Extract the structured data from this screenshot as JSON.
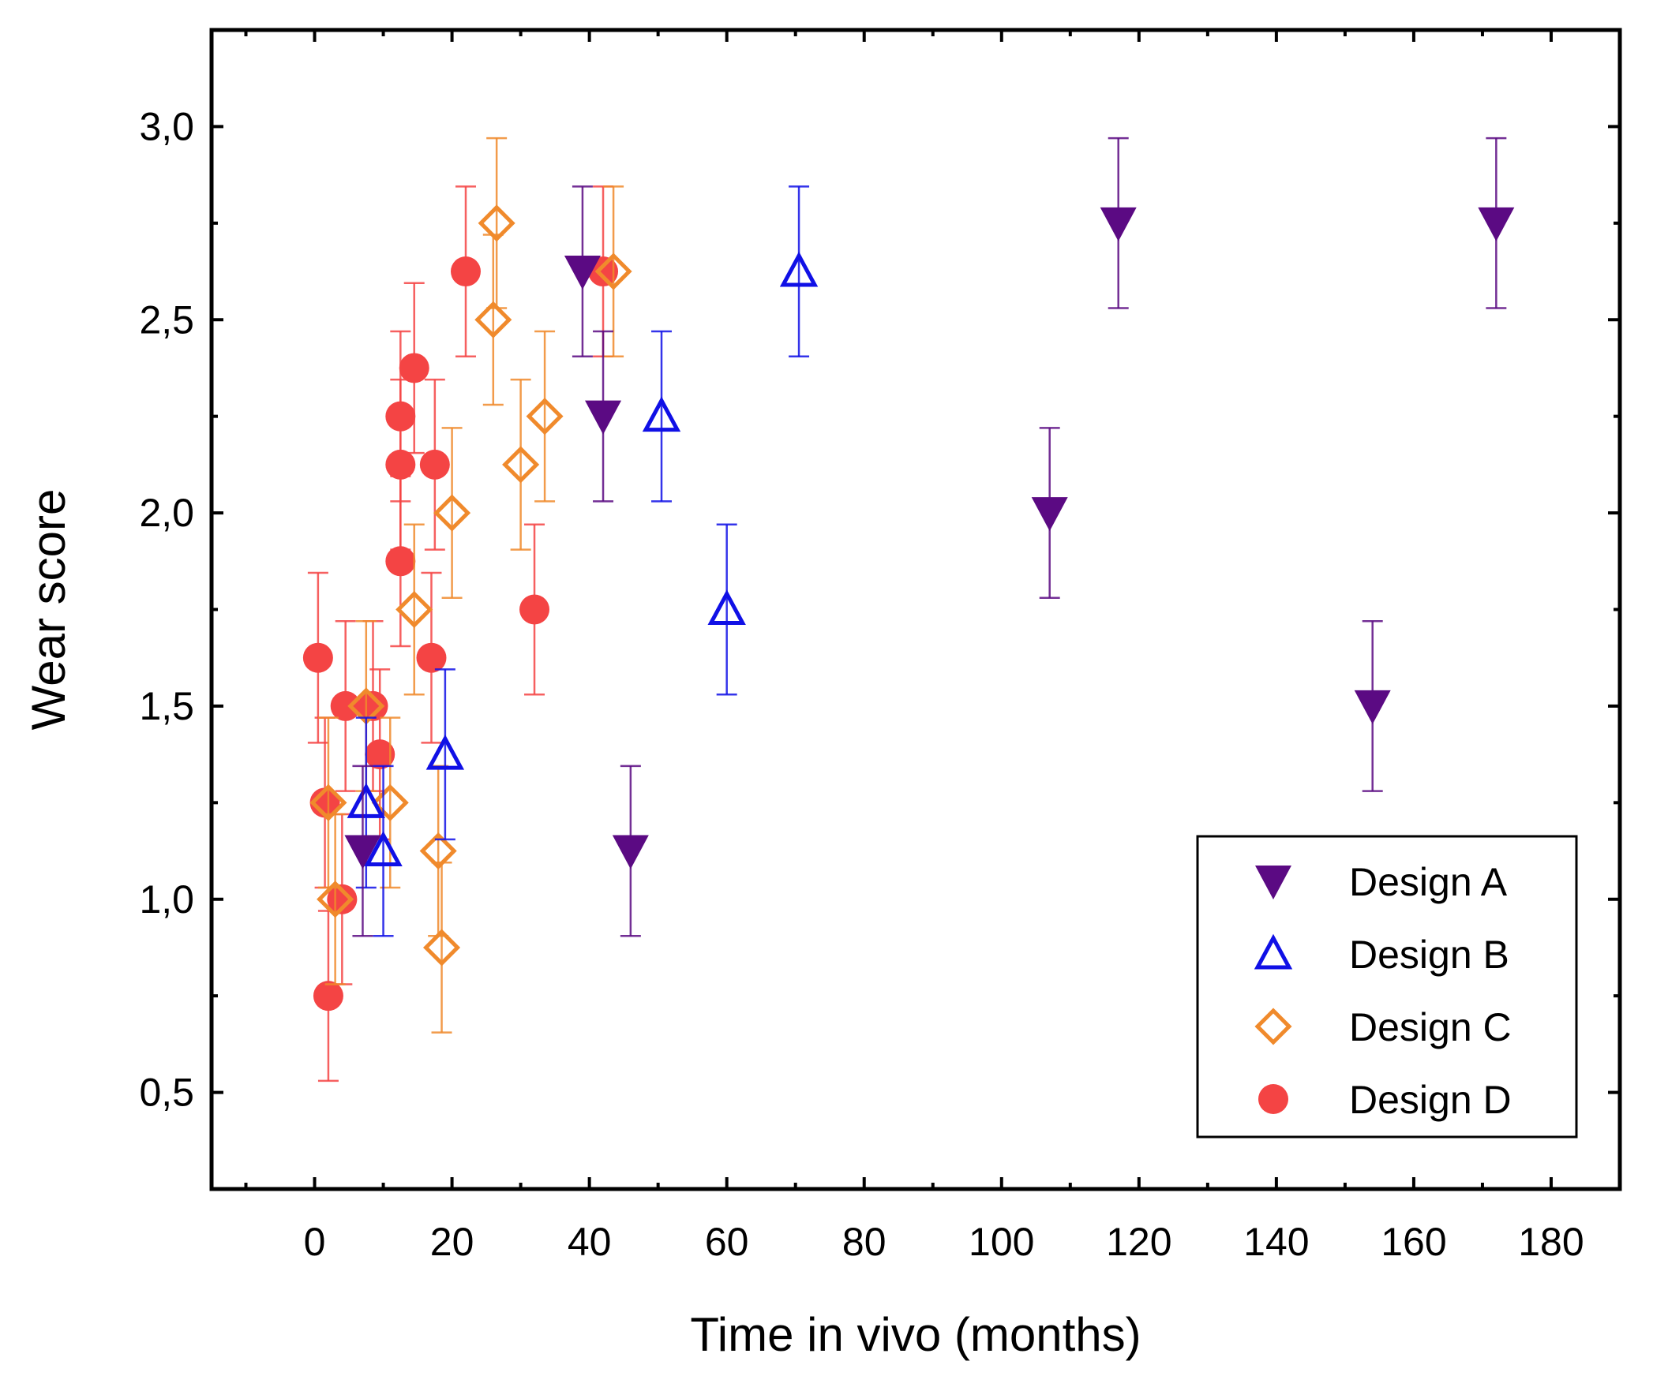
{
  "chart_data": {
    "type": "scatter",
    "title": "",
    "xlabel": "Time in vivo (months)",
    "ylabel": "Wear score",
    "xlim": [
      -15,
      190
    ],
    "ylim": [
      0.25,
      3.25
    ],
    "xticks": [
      0,
      20,
      40,
      60,
      80,
      100,
      120,
      140,
      160,
      180
    ],
    "xtick_labels": [
      "0",
      "20",
      "40",
      "60",
      "80",
      "100",
      "120",
      "140",
      "160",
      "180"
    ],
    "yticks": [
      0.5,
      1.0,
      1.5,
      2.0,
      2.5,
      3.0
    ],
    "ytick_labels": [
      "0,5",
      "1,0",
      "1,5",
      "2,0",
      "2,5",
      "3,0"
    ],
    "grid": false,
    "legend_position": "bottom-right",
    "series": [
      {
        "name": "Design A",
        "marker": "triangle-down-filled",
        "color": "#5B0A83",
        "points": [
          {
            "x": 7,
            "y": 1.125,
            "err": 0.22
          },
          {
            "x": 39,
            "y": 2.625,
            "err": 0.22
          },
          {
            "x": 42,
            "y": 2.25,
            "err": 0.22
          },
          {
            "x": 46,
            "y": 1.125,
            "err": 0.22
          },
          {
            "x": 107,
            "y": 2.0,
            "err": 0.22
          },
          {
            "x": 117,
            "y": 2.75,
            "err": 0.22
          },
          {
            "x": 154,
            "y": 1.5,
            "err": 0.22
          },
          {
            "x": 172,
            "y": 2.75,
            "err": 0.22
          }
        ]
      },
      {
        "name": "Design B",
        "marker": "triangle-up-open",
        "color": "#1010E6",
        "points": [
          {
            "x": 7.5,
            "y": 1.25,
            "err": 0.22
          },
          {
            "x": 10,
            "y": 1.125,
            "err": 0.22
          },
          {
            "x": 19,
            "y": 1.375,
            "err": 0.22
          },
          {
            "x": 50.5,
            "y": 2.25,
            "err": 0.22
          },
          {
            "x": 60,
            "y": 1.75,
            "err": 0.22
          },
          {
            "x": 70.5,
            "y": 2.625,
            "err": 0.22
          }
        ]
      },
      {
        "name": "Design C",
        "marker": "diamond-open",
        "color": "#F08A2C",
        "points": [
          {
            "x": 2,
            "y": 1.25,
            "err": 0.22
          },
          {
            "x": 3,
            "y": 1.0,
            "err": 0.22
          },
          {
            "x": 7.5,
            "y": 1.5,
            "err": 0.22
          },
          {
            "x": 11,
            "y": 1.25,
            "err": 0.22
          },
          {
            "x": 14.5,
            "y": 1.75,
            "err": 0.22
          },
          {
            "x": 18,
            "y": 1.125,
            "err": 0.22
          },
          {
            "x": 18.5,
            "y": 0.875,
            "err": 0.22
          },
          {
            "x": 20,
            "y": 2.0,
            "err": 0.22
          },
          {
            "x": 26,
            "y": 2.5,
            "err": 0.22
          },
          {
            "x": 26.5,
            "y": 2.75,
            "err": 0.22
          },
          {
            "x": 30,
            "y": 2.125,
            "err": 0.22
          },
          {
            "x": 33.5,
            "y": 2.25,
            "err": 0.22
          },
          {
            "x": 43.5,
            "y": 2.625,
            "err": 0.22
          }
        ]
      },
      {
        "name": "Design D",
        "marker": "circle-filled",
        "color": "#F44444",
        "points": [
          {
            "x": 0.5,
            "y": 1.625,
            "err": 0.22
          },
          {
            "x": 1.5,
            "y": 1.25,
            "err": 0.22
          },
          {
            "x": 2,
            "y": 0.75,
            "err": 0.22
          },
          {
            "x": 4,
            "y": 1.0,
            "err": 0.22
          },
          {
            "x": 4.5,
            "y": 1.5,
            "err": 0.22
          },
          {
            "x": 8.5,
            "y": 1.5,
            "err": 0.22
          },
          {
            "x": 9.5,
            "y": 1.375,
            "err": 0.22
          },
          {
            "x": 12.5,
            "y": 1.875,
            "err": 0.22
          },
          {
            "x": 12.5,
            "y": 2.125,
            "err": 0.22
          },
          {
            "x": 12.5,
            "y": 2.25,
            "err": 0.22
          },
          {
            "x": 14.5,
            "y": 2.375,
            "err": 0.22
          },
          {
            "x": 17,
            "y": 1.625,
            "err": 0.22
          },
          {
            "x": 17.5,
            "y": 2.125,
            "err": 0.22
          },
          {
            "x": 22,
            "y": 2.625,
            "err": 0.22
          },
          {
            "x": 32,
            "y": 1.75,
            "err": 0.22
          },
          {
            "x": 42,
            "y": 2.625,
            "err": 0.22
          }
        ]
      }
    ]
  }
}
